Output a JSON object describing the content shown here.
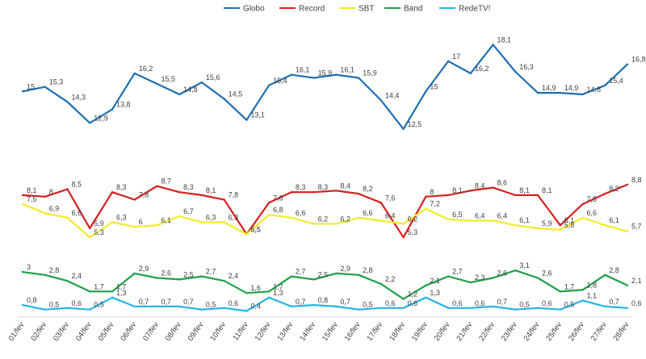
{
  "chart_data": {
    "type": "line",
    "title": "",
    "xlabel": "",
    "ylabel": "",
    "legend_position": "top",
    "grid": false,
    "ylim": [
      0,
      20
    ],
    "categories": [
      "01/fev",
      "02/fev",
      "03/fev",
      "04/fev",
      "05/fev",
      "06/fev",
      "07/fev",
      "08/fev",
      "09/fev",
      "10/fev",
      "11/fev",
      "12/fev",
      "13/fev",
      "14/fev",
      "15/fev",
      "16/fev",
      "17/fev",
      "18/fev",
      "19/fev",
      "20/fev",
      "21/fev",
      "22/fev",
      "23/fev",
      "24/fev",
      "25/fev",
      "26/fev",
      "27/fev",
      "28/fev"
    ],
    "series": [
      {
        "name": "Globo",
        "color": "#1f6fb3",
        "values": [
          15,
          15.3,
          14.3,
          12.9,
          13.8,
          16.2,
          15.5,
          14.8,
          15.6,
          14.5,
          13.1,
          15.4,
          16.1,
          15.9,
          16.1,
          15.9,
          14.4,
          12.5,
          15,
          17,
          16.2,
          18.1,
          16.3,
          14.9,
          14.9,
          14.8,
          15.4,
          16.8
        ]
      },
      {
        "name": "Record",
        "color": "#d42020",
        "values": [
          8.1,
          8,
          8.5,
          5.9,
          8.3,
          7.8,
          8.7,
          8.3,
          8.1,
          7.8,
          5.5,
          7.6,
          8.3,
          8.3,
          8.4,
          8.2,
          7.6,
          5.3,
          8,
          8.1,
          8.4,
          8.6,
          8.1,
          8.1,
          6.1,
          7.5,
          8.2,
          8.8
        ]
      },
      {
        "name": "SBT",
        "color": "#f2ec2a",
        "values": [
          7.5,
          6.9,
          6.6,
          5.3,
          6.3,
          6,
          6.1,
          6.7,
          6.3,
          6.3,
          5.5,
          6.8,
          6.6,
          6.2,
          6.2,
          6.6,
          6.4,
          6.2,
          7.2,
          6.5,
          6.4,
          6.4,
          6.1,
          5.9,
          5.8,
          6.6,
          6.1,
          5.7
        ]
      },
      {
        "name": "Band",
        "color": "#1fa04a",
        "values": [
          3,
          2.8,
          2.4,
          1.7,
          1.7,
          2.9,
          2.6,
          2.5,
          2.7,
          2.4,
          1.6,
          1.7,
          2.7,
          2.5,
          2.9,
          2.8,
          2.2,
          1.2,
          2.1,
          2.7,
          2.3,
          2.6,
          3.1,
          2.6,
          1.7,
          1.8,
          2.8,
          2.1
        ]
      },
      {
        "name": "RedeTV!",
        "color": "#28b4e6",
        "values": [
          0.8,
          0.5,
          0.6,
          0.5,
          1.3,
          0.7,
          0.7,
          0.7,
          0.5,
          0.6,
          0.4,
          1.3,
          0.7,
          0.8,
          0.7,
          0.5,
          0.6,
          0.6,
          1.3,
          0.6,
          0.6,
          0.7,
          0.5,
          0.6,
          0.5,
          1.1,
          0.7,
          0.6
        ]
      }
    ]
  }
}
